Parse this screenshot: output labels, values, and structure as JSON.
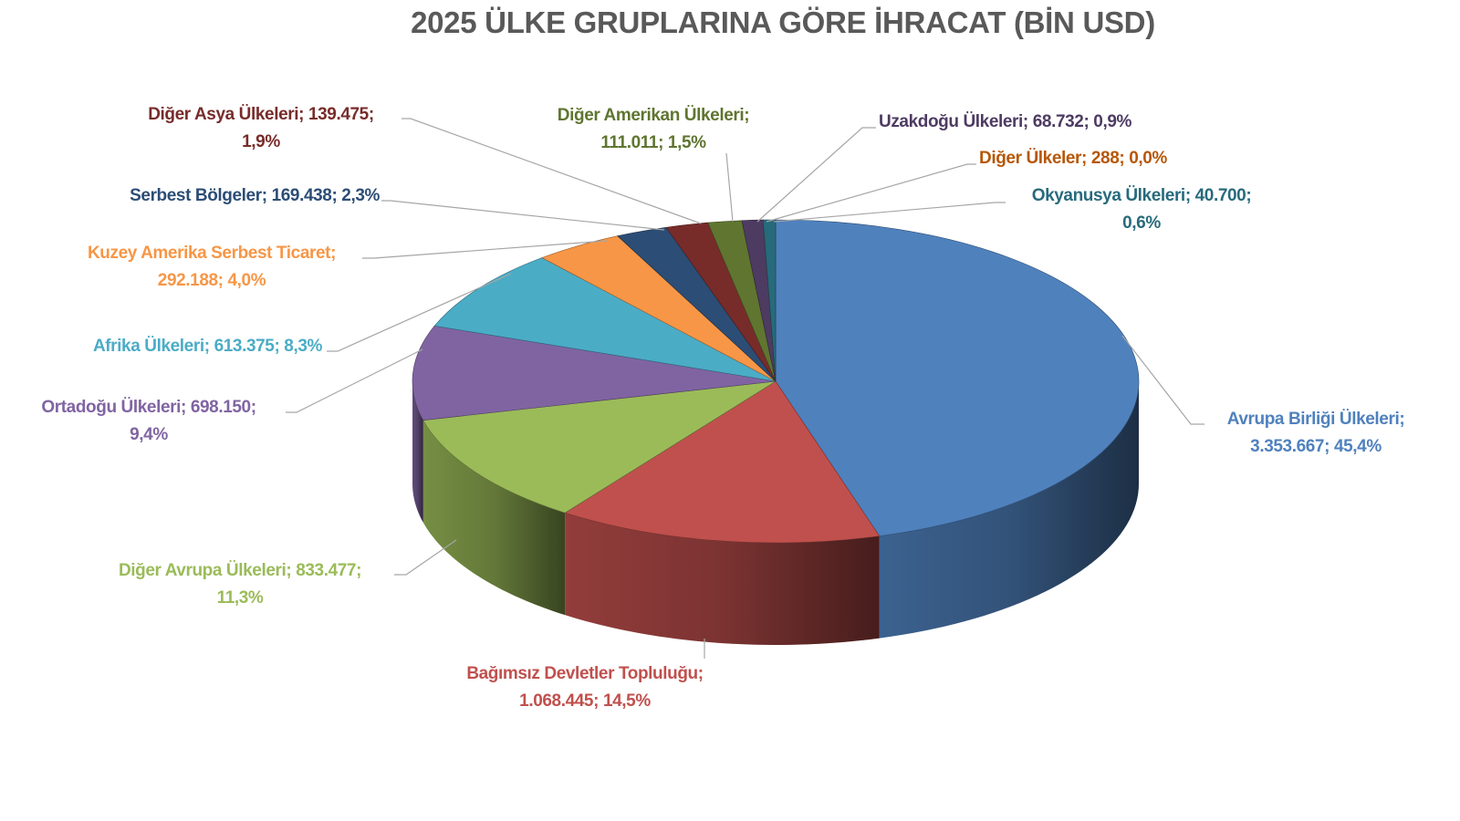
{
  "chart_data": {
    "type": "pie",
    "style": "3d",
    "title": "2025 ÜLKE GRUPLARINA GÖRE İHRACAT (BİN USD)",
    "slices": [
      {
        "name": "Avrupa Birliği Ülkeleri",
        "value": "3.353.667",
        "percent": "45,4%",
        "v": 3353667,
        "color": "#4f81bd",
        "label_color": "#4f81bd"
      },
      {
        "name": "Bağımsız Devletler Topluluğu",
        "value": "1.068.445",
        "percent": "14,5%",
        "v": 1068445,
        "color": "#c0504d",
        "label_color": "#c0504d"
      },
      {
        "name": "Diğer Avrupa Ülkeleri",
        "value": "833.477",
        "percent": "11,3%",
        "v": 833477,
        "color": "#9bbb59",
        "label_color": "#9bbb59"
      },
      {
        "name": "Ortadoğu Ülkeleri",
        "value": "698.150",
        "percent": "9,4%",
        "v": 698150,
        "color": "#8064a2",
        "label_color": "#8064a2"
      },
      {
        "name": "Afrika Ülkeleri",
        "value": "613.375",
        "percent": "8,3%",
        "v": 613375,
        "color": "#4bacc6",
        "label_color": "#4bacc6"
      },
      {
        "name": "Kuzey Amerika Serbest Ticaret",
        "value": "292.188",
        "percent": "4,0%",
        "v": 292188,
        "color": "#f79646",
        "label_color": "#f79646"
      },
      {
        "name": "Serbest Bölgeler",
        "value": "169.438",
        "percent": "2,3%",
        "v": 169438,
        "color": "#2c4d75",
        "label_color": "#2c4d75"
      },
      {
        "name": "Diğer Asya Ülkeleri",
        "value": "139.475",
        "percent": "1,9%",
        "v": 139475,
        "color": "#772c2a",
        "label_color": "#772c2a"
      },
      {
        "name": "Diğer Amerikan Ülkeleri",
        "value": "111.011",
        "percent": "1,5%",
        "v": 111011,
        "color": "#5f7530",
        "label_color": "#5f7530"
      },
      {
        "name": "Uzakdoğu Ülkeleri",
        "value": "68.732",
        "percent": "0,9%",
        "v": 68732,
        "color": "#4d3b62",
        "label_color": "#4d3b62"
      },
      {
        "name": "Diğer Ülkeler",
        "value": "288",
        "percent": "0,0%",
        "v": 288,
        "color": "#b65708",
        "label_color": "#b65708"
      },
      {
        "name": "Okyanusya Ülkeleri",
        "value": "40.700",
        "percent": "0,6%",
        "v": 40700,
        "color": "#276a7c",
        "label_color": "#276a7c"
      }
    ]
  }
}
